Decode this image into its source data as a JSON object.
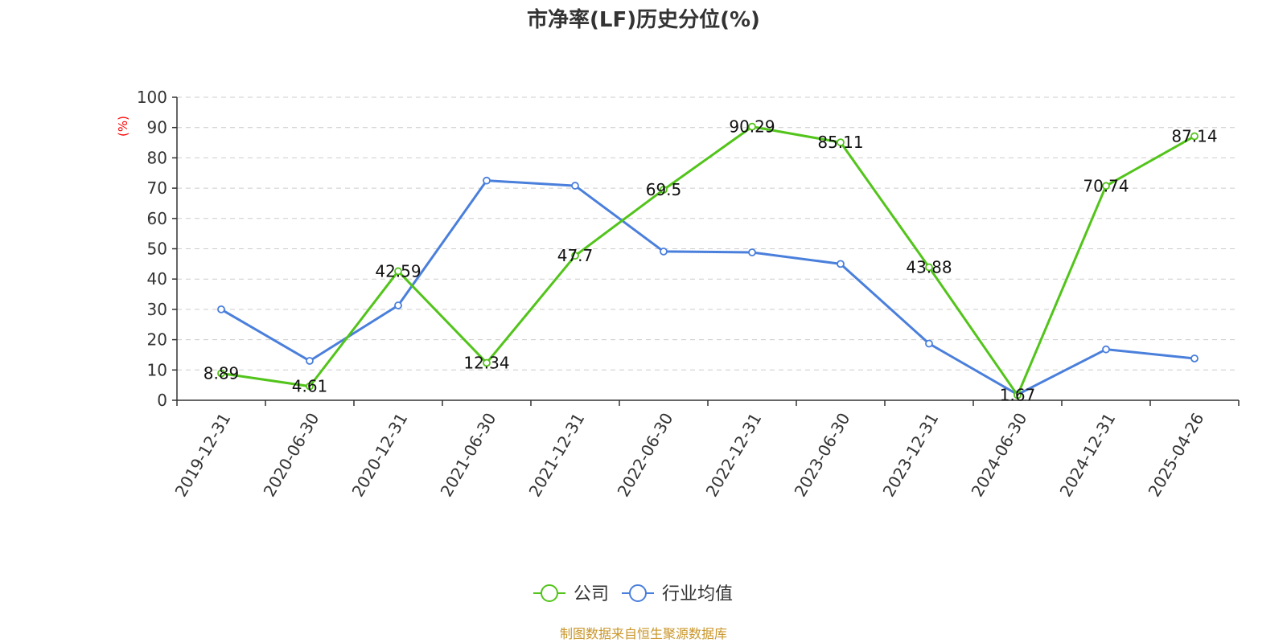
{
  "chart_data": {
    "type": "line",
    "title": "市净率(LF)历史分位(%)",
    "ylabel": "(%)",
    "xlabel": "",
    "ylim": [
      0,
      100
    ],
    "yticks": [
      0,
      10,
      20,
      30,
      40,
      50,
      60,
      70,
      80,
      90,
      100
    ],
    "categories": [
      "2019-12-31",
      "2020-06-30",
      "2020-12-31",
      "2021-06-30",
      "2021-12-31",
      "2022-06-30",
      "2022-12-31",
      "2023-06-30",
      "2023-12-31",
      "2024-06-30",
      "2024-12-31",
      "2025-04-26"
    ],
    "grid": true,
    "legend_position": "bottom",
    "series": [
      {
        "name": "公司",
        "color": "#52c41a",
        "values": [
          8.89,
          4.61,
          42.59,
          12.34,
          47.7,
          69.5,
          90.29,
          85.11,
          43.88,
          1.67,
          70.74,
          87.14
        ],
        "labels": [
          "8.89",
          "4.61",
          "42.59",
          "12.34",
          "47.7",
          "69.5",
          "90.29",
          "85.11",
          "43.88",
          "1.67",
          "70.74",
          "87.14"
        ],
        "show_labels": true
      },
      {
        "name": "行业均值",
        "color": "#4a7fdc",
        "values": [
          30.0,
          13.0,
          31.3,
          72.5,
          70.8,
          49.1,
          48.8,
          45.0,
          18.7,
          1.9,
          16.8,
          13.8
        ],
        "show_labels": false
      }
    ]
  },
  "source": "制图数据来自恒生聚源数据库"
}
